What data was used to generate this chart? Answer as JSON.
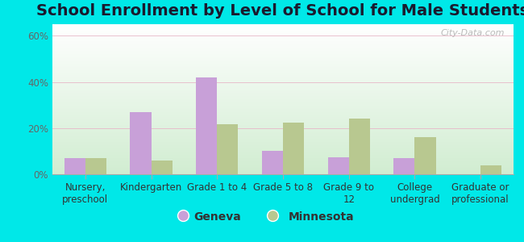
{
  "title": "School Enrollment by Level of School for Male Students",
  "categories": [
    "Nursery,\npreschool",
    "Kindergarten",
    "Grade 1 to 4",
    "Grade 5 to 8",
    "Grade 9 to\n12",
    "College\nundergrad",
    "Graduate or\nprofessional"
  ],
  "geneva_values": [
    7.0,
    27.0,
    42.0,
    10.0,
    7.5,
    7.0,
    0.0
  ],
  "minnesota_values": [
    7.0,
    6.0,
    21.5,
    22.5,
    24.0,
    16.0,
    4.0
  ],
  "geneva_color": "#c8a0d8",
  "minnesota_color": "#b8c890",
  "background_outer": "#00e8e8",
  "ylim": [
    0,
    65
  ],
  "yticks": [
    0,
    20,
    40,
    60
  ],
  "ytick_labels": [
    "0%",
    "20%",
    "40%",
    "60%"
  ],
  "legend_labels": [
    "Geneva",
    "Minnesota"
  ],
  "title_fontsize": 14,
  "tick_fontsize": 8.5,
  "legend_fontsize": 10,
  "watermark": "City-Data.com"
}
